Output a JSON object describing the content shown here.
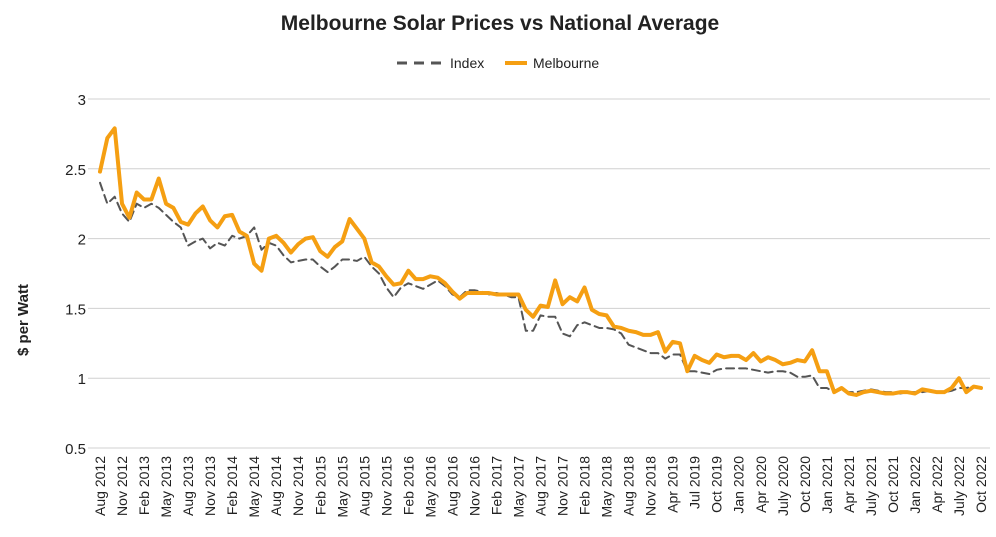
{
  "chart_data": {
    "type": "line",
    "title": "Melbourne Solar Prices vs National Average",
    "y_label": "$ per Watt",
    "categories": [
      "Aug 2012",
      null,
      null,
      "Nov 2012",
      null,
      null,
      "Feb 2013",
      null,
      null,
      "May 2013",
      null,
      null,
      "Aug 2013",
      null,
      null,
      "Nov 2013",
      null,
      null,
      "Feb 2014",
      null,
      null,
      "May 2014",
      null,
      null,
      "Aug 2014",
      null,
      null,
      "Nov 2014",
      null,
      null,
      "Feb 2015",
      null,
      null,
      "May 2015",
      null,
      null,
      "Aug 2015",
      null,
      null,
      "Nov 2015",
      null,
      null,
      "Feb 2016",
      null,
      null,
      "May 2016",
      null,
      null,
      "Aug 2016",
      null,
      null,
      "Nov 2016",
      null,
      null,
      "Feb 2017",
      null,
      null,
      "May 2017",
      null,
      null,
      "Aug 2017",
      null,
      null,
      "Nov 2017",
      null,
      null,
      "Feb 2018",
      null,
      null,
      "May 2018",
      null,
      null,
      "Aug 2018",
      null,
      null,
      "Nov 2018",
      null,
      null,
      "Apr 2019",
      null,
      null,
      "Jul 2019",
      null,
      null,
      "Oct 2019",
      null,
      null,
      "Jan 2020",
      null,
      null,
      "Apr 2020",
      null,
      null,
      "July 2020",
      null,
      null,
      "Oct 2020",
      null,
      null,
      "Jan 2021",
      null,
      null,
      "Apr 2021",
      null,
      null,
      "July 2021",
      null,
      null,
      "Oct 2021",
      null,
      null,
      "Jan 2022",
      null,
      null,
      "Apr 2022",
      null,
      null,
      "July 2022",
      null,
      null,
      "Oct 2022"
    ],
    "series": [
      {
        "name": "Index",
        "color": "#555555",
        "dashed": true,
        "values": [
          2.4,
          2.25,
          2.3,
          2.18,
          2.12,
          2.25,
          2.22,
          2.25,
          2.22,
          2.17,
          2.12,
          2.08,
          1.95,
          1.98,
          2.0,
          1.93,
          1.97,
          1.95,
          2.02,
          2.0,
          2.02,
          2.08,
          1.92,
          1.97,
          1.95,
          1.88,
          1.83,
          1.84,
          1.85,
          1.85,
          1.8,
          1.76,
          1.8,
          1.85,
          1.85,
          1.84,
          1.87,
          1.8,
          1.75,
          1.65,
          1.58,
          1.65,
          1.68,
          1.66,
          1.64,
          1.67,
          1.7,
          1.66,
          1.6,
          1.58,
          1.63,
          1.63,
          1.62,
          1.6,
          1.61,
          1.6,
          1.58,
          1.58,
          1.34,
          1.34,
          1.45,
          1.44,
          1.44,
          1.32,
          1.3,
          1.38,
          1.4,
          1.38,
          1.36,
          1.36,
          1.35,
          1.32,
          1.24,
          1.22,
          1.2,
          1.18,
          1.18,
          1.14,
          1.17,
          1.17,
          1.05,
          1.05,
          1.04,
          1.03,
          1.06,
          1.07,
          1.07,
          1.07,
          1.07,
          1.06,
          1.05,
          1.04,
          1.05,
          1.05,
          1.04,
          1.01,
          1.01,
          1.02,
          0.93,
          0.93,
          0.9,
          0.92,
          0.9,
          0.9,
          0.91,
          0.92,
          0.91,
          0.9,
          0.9,
          0.89,
          0.9,
          0.9,
          0.9,
          0.91,
          0.9,
          0.9,
          0.91,
          0.93,
          0.93,
          0.94,
          0.93
        ]
      },
      {
        "name": "Melbourne",
        "color": "#f59f12",
        "dashed": false,
        "values": [
          2.48,
          2.72,
          2.79,
          2.25,
          2.15,
          2.33,
          2.28,
          2.28,
          2.43,
          2.25,
          2.22,
          2.12,
          2.1,
          2.18,
          2.23,
          2.13,
          2.08,
          2.16,
          2.17,
          2.05,
          2.02,
          1.82,
          1.77,
          2.0,
          2.02,
          1.97,
          1.9,
          1.96,
          2.0,
          2.01,
          1.91,
          1.87,
          1.94,
          1.98,
          2.14,
          2.07,
          2.0,
          1.83,
          1.8,
          1.73,
          1.67,
          1.68,
          1.77,
          1.71,
          1.71,
          1.73,
          1.72,
          1.68,
          1.62,
          1.57,
          1.61,
          1.61,
          1.61,
          1.61,
          1.6,
          1.6,
          1.6,
          1.6,
          1.49,
          1.44,
          1.52,
          1.51,
          1.7,
          1.53,
          1.58,
          1.55,
          1.65,
          1.49,
          1.46,
          1.45,
          1.37,
          1.36,
          1.34,
          1.33,
          1.31,
          1.31,
          1.33,
          1.19,
          1.26,
          1.25,
          1.05,
          1.16,
          1.13,
          1.11,
          1.17,
          1.15,
          1.16,
          1.16,
          1.13,
          1.18,
          1.12,
          1.15,
          1.13,
          1.1,
          1.11,
          1.13,
          1.12,
          1.2,
          1.05,
          1.05,
          0.9,
          0.93,
          0.89,
          0.88,
          0.9,
          0.91,
          0.9,
          0.89,
          0.89,
          0.9,
          0.9,
          0.89,
          0.92,
          0.91,
          0.9,
          0.9,
          0.93,
          1.0,
          0.9,
          0.94,
          0.93
        ]
      }
    ],
    "ylim": [
      0.5,
      3
    ],
    "yticks": [
      0.5,
      1,
      1.5,
      2,
      2.5,
      3
    ],
    "grid": true,
    "legend": "top"
  }
}
